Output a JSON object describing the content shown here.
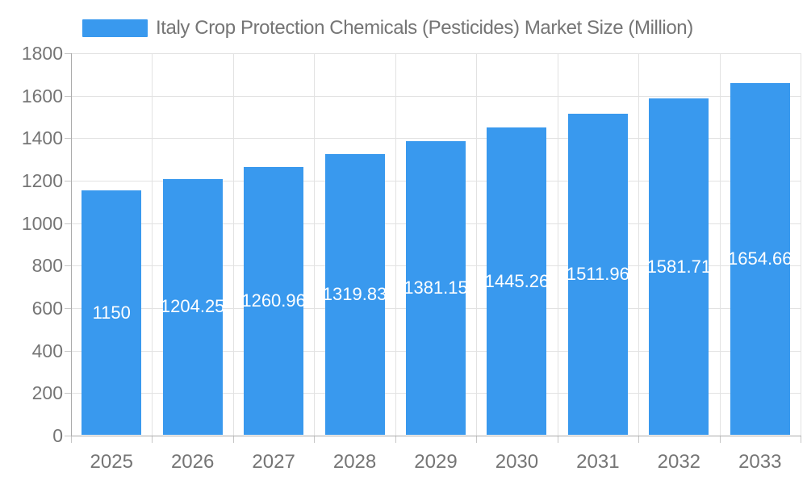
{
  "legend": {
    "label": "Italy Crop Protection Chemicals (Pesticides) Market Size (Million)"
  },
  "colors": {
    "bar": "#3999EE",
    "bar_label": "#FFFFFF",
    "axis_text": "#757575",
    "grid_line": "#E2E2E2",
    "axis_line": "#ABABAB",
    "tick": "#C6C6C6",
    "background": "#FFFFFF"
  },
  "chart_data": {
    "type": "bar",
    "title": "Italy Crop Protection Chemicals (Pesticides) Market Size (Million)",
    "categories": [
      "2025",
      "2026",
      "2027",
      "2028",
      "2029",
      "2030",
      "2031",
      "2032",
      "2033"
    ],
    "values": [
      1150,
      1204.25,
      1260.96,
      1319.83,
      1381.15,
      1445.26,
      1511.96,
      1581.71,
      1654.66
    ],
    "value_labels": [
      "1150",
      "1204.25",
      "1260.96",
      "1319.83",
      "1381.15",
      "1445.26",
      "1511.96",
      "1581.71",
      "1654.66"
    ],
    "xlabel": "",
    "ylabel": "",
    "ylim": [
      0,
      1800
    ],
    "yticks": [
      0,
      200,
      400,
      600,
      800,
      1000,
      1200,
      1400,
      1600,
      1800
    ],
    "grid": true,
    "legend_position": "top",
    "bar_label_position": "inside-center"
  }
}
